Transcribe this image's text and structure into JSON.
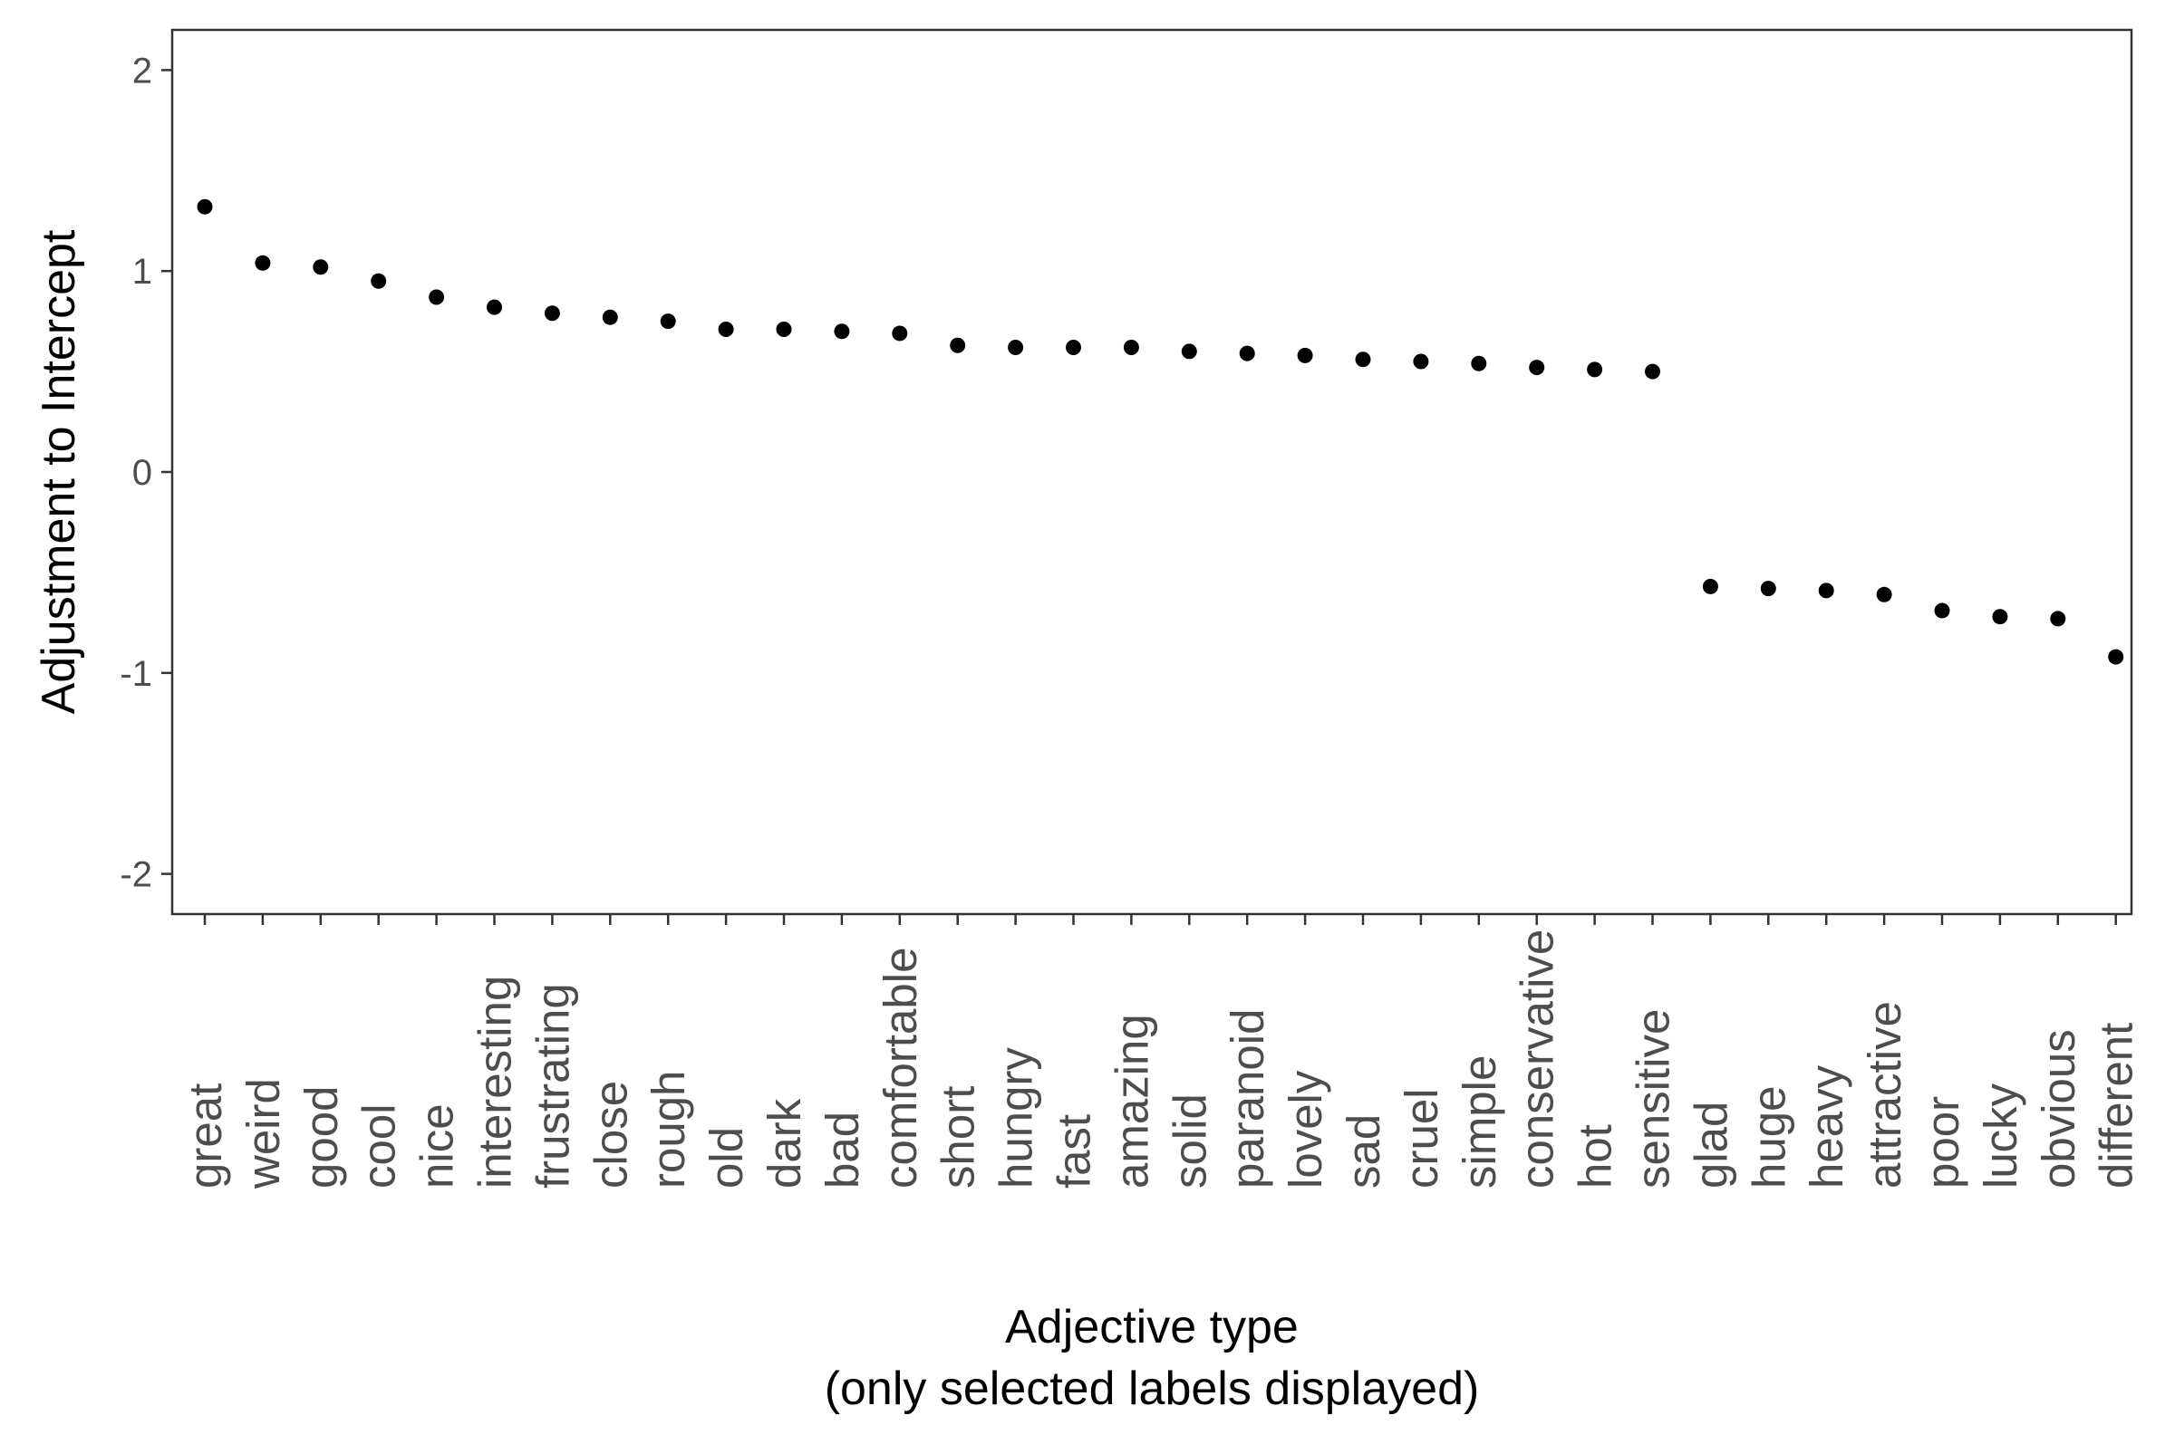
{
  "chart_data": {
    "type": "scatter",
    "title": "",
    "xlabel_line1": "Adjective type",
    "xlabel_line2": "(only selected labels displayed)",
    "ylabel": "Adjustment to Intercept",
    "ylim": [
      -2.2,
      2.2
    ],
    "yticks": [
      -2,
      -1,
      0,
      1,
      2
    ],
    "ytick_labels": [
      "-2",
      "-1",
      "0",
      "1",
      "2"
    ],
    "grid": false,
    "legend": "none",
    "point_color": "#000000",
    "categories": [
      "great",
      "weird",
      "good",
      "cool",
      "nice",
      "interesting",
      "frustrating",
      "close",
      "rough",
      "old",
      "dark",
      "bad",
      "comfortable",
      "short",
      "hungry",
      "fast",
      "amazing",
      "solid",
      "paranoid",
      "lovely",
      "sad",
      "cruel",
      "simple",
      "conservative",
      "hot",
      "sensitive",
      "glad",
      "huge",
      "heavy",
      "attractive",
      "poor",
      "lucky",
      "obvious",
      "different"
    ],
    "values": [
      1.32,
      1.04,
      1.02,
      0.95,
      0.87,
      0.82,
      0.79,
      0.77,
      0.75,
      0.71,
      0.71,
      0.7,
      0.69,
      0.63,
      0.62,
      0.62,
      0.62,
      0.6,
      0.59,
      0.58,
      0.56,
      0.55,
      0.54,
      0.52,
      0.51,
      0.5,
      -0.57,
      -0.58,
      -0.59,
      -0.61,
      -0.69,
      -0.72,
      -0.73,
      -0.92
    ]
  }
}
